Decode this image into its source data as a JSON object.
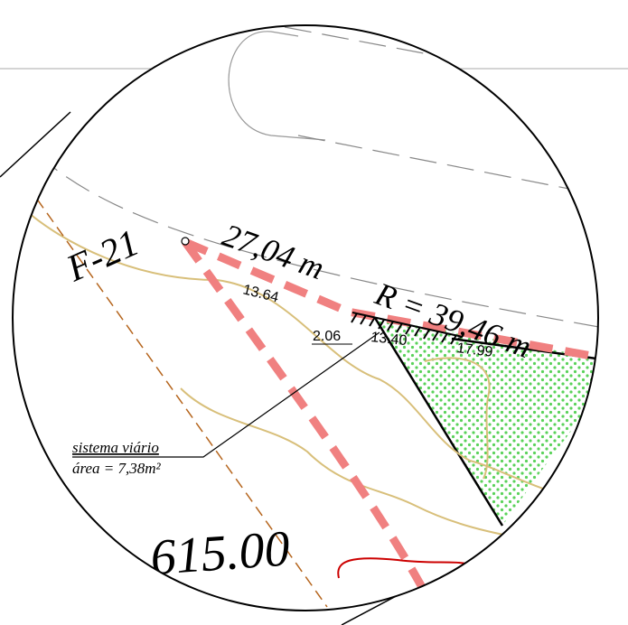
{
  "labels": {
    "point": "F-21",
    "distance": "27,04 m",
    "radius": "R = 39,46 m",
    "dim_a": "13.64",
    "dim_b": "2.06",
    "dim_c": "13.40",
    "dim_d": "17.99",
    "note_title": "sistema viário",
    "note_area": "área = 7,38m²",
    "elevation": "615.00"
  }
}
